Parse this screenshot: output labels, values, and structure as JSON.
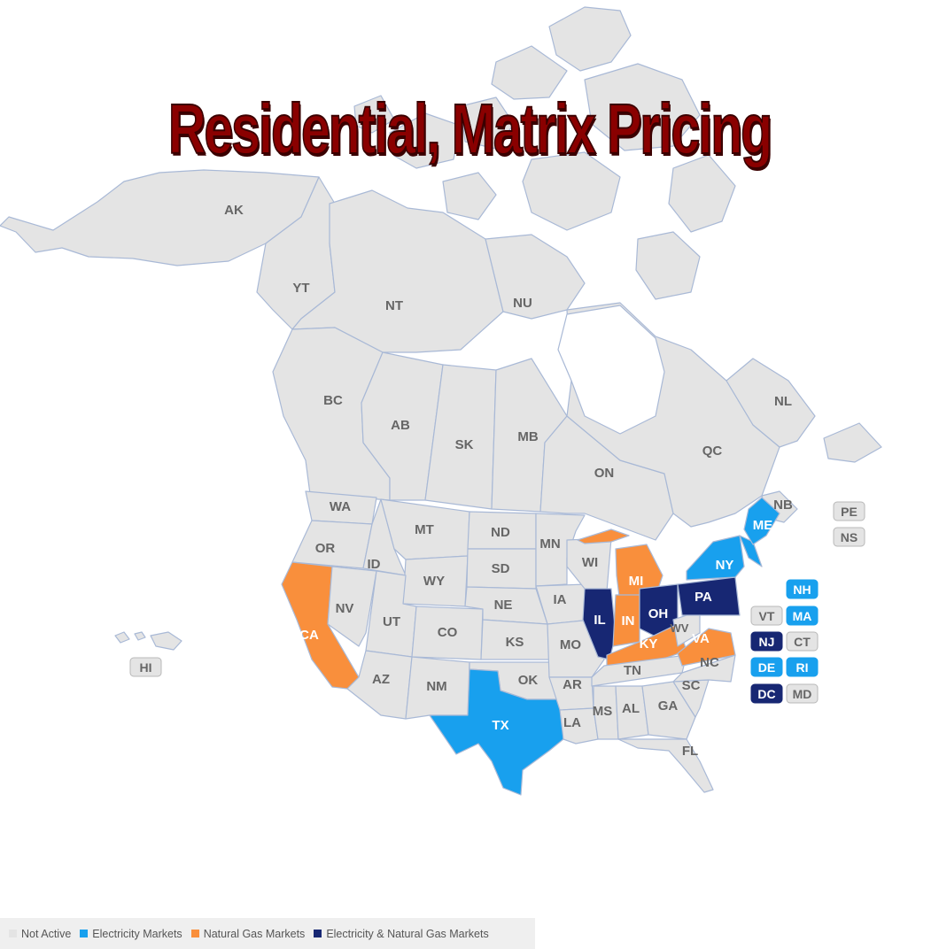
{
  "title": "Residential, Matrix Pricing",
  "colors": {
    "not_active": "#e4e4e4",
    "electricity": "#18a0ee",
    "natural_gas": "#f98f3c",
    "both": "#172773",
    "title": "#8a0000"
  },
  "legend": [
    {
      "label": "Not Active",
      "status": "none",
      "color": "#e4e4e4"
    },
    {
      "label": "Electricity Markets",
      "status": "elec",
      "color": "#18a0ee"
    },
    {
      "label": "Natural Gas Markets",
      "status": "gas",
      "color": "#f98f3c"
    },
    {
      "label": "Electricity & Natural Gas Markets",
      "status": "both",
      "color": "#172773"
    }
  ],
  "regions": [
    {
      "code": "AK",
      "status": "none"
    },
    {
      "code": "YT",
      "status": "none"
    },
    {
      "code": "NT",
      "status": "none"
    },
    {
      "code": "NU",
      "status": "none"
    },
    {
      "code": "BC",
      "status": "none"
    },
    {
      "code": "AB",
      "status": "none"
    },
    {
      "code": "SK",
      "status": "none"
    },
    {
      "code": "MB",
      "status": "none"
    },
    {
      "code": "ON",
      "status": "none"
    },
    {
      "code": "QC",
      "status": "none"
    },
    {
      "code": "NL",
      "status": "none"
    },
    {
      "code": "NB",
      "status": "none"
    },
    {
      "code": "WA",
      "status": "none"
    },
    {
      "code": "OR",
      "status": "none"
    },
    {
      "code": "CA",
      "status": "gas"
    },
    {
      "code": "NV",
      "status": "none"
    },
    {
      "code": "ID",
      "status": "none"
    },
    {
      "code": "MT",
      "status": "none"
    },
    {
      "code": "WY",
      "status": "none"
    },
    {
      "code": "UT",
      "status": "none"
    },
    {
      "code": "AZ",
      "status": "none"
    },
    {
      "code": "CO",
      "status": "none"
    },
    {
      "code": "NM",
      "status": "none"
    },
    {
      "code": "ND",
      "status": "none"
    },
    {
      "code": "SD",
      "status": "none"
    },
    {
      "code": "NE",
      "status": "none"
    },
    {
      "code": "KS",
      "status": "none"
    },
    {
      "code": "OK",
      "status": "none"
    },
    {
      "code": "TX",
      "status": "elec"
    },
    {
      "code": "MN",
      "status": "none"
    },
    {
      "code": "IA",
      "status": "none"
    },
    {
      "code": "MO",
      "status": "none"
    },
    {
      "code": "AR",
      "status": "none"
    },
    {
      "code": "LA",
      "status": "none"
    },
    {
      "code": "WI",
      "status": "none"
    },
    {
      "code": "IL",
      "status": "both"
    },
    {
      "code": "MI",
      "status": "gas"
    },
    {
      "code": "IN",
      "status": "gas"
    },
    {
      "code": "OH",
      "status": "both"
    },
    {
      "code": "KY",
      "status": "gas"
    },
    {
      "code": "TN",
      "status": "none"
    },
    {
      "code": "MS",
      "status": "none"
    },
    {
      "code": "AL",
      "status": "none"
    },
    {
      "code": "GA",
      "status": "none"
    },
    {
      "code": "FL",
      "status": "none"
    },
    {
      "code": "SC",
      "status": "none"
    },
    {
      "code": "NC",
      "status": "none"
    },
    {
      "code": "VA",
      "status": "gas"
    },
    {
      "code": "WV",
      "status": "none"
    },
    {
      "code": "PA",
      "status": "both"
    },
    {
      "code": "NY",
      "status": "elec"
    },
    {
      "code": "ME",
      "status": "elec"
    },
    {
      "code": "HI",
      "status": "none"
    }
  ],
  "small_boxes": [
    {
      "code": "PE",
      "status": "none"
    },
    {
      "code": "NS",
      "status": "none"
    },
    {
      "code": "NH",
      "status": "elec"
    },
    {
      "code": "VT",
      "status": "none"
    },
    {
      "code": "MA",
      "status": "elec"
    },
    {
      "code": "NJ",
      "status": "both"
    },
    {
      "code": "CT",
      "status": "none"
    },
    {
      "code": "DE",
      "status": "elec"
    },
    {
      "code": "RI",
      "status": "elec"
    },
    {
      "code": "DC",
      "status": "both"
    },
    {
      "code": "MD",
      "status": "none"
    }
  ]
}
